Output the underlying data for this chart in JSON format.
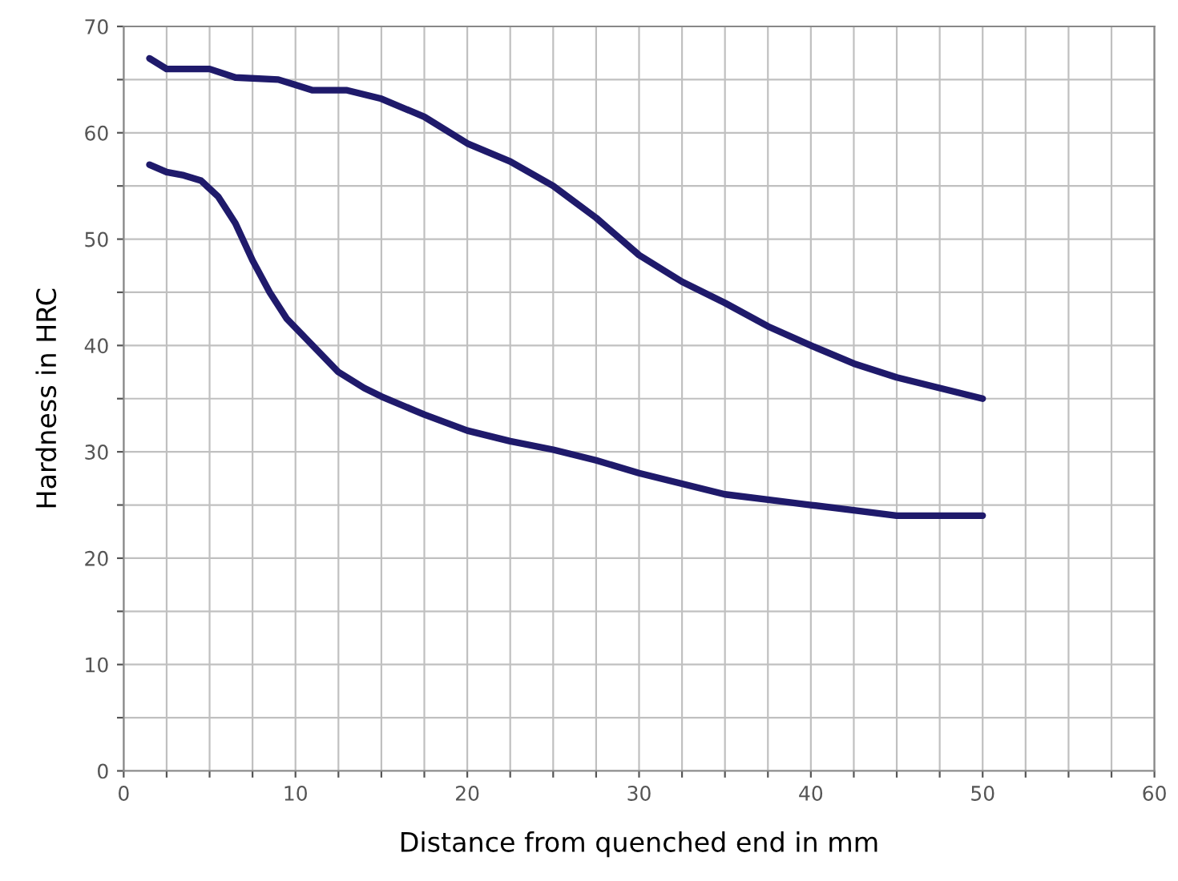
{
  "chart_data": {
    "type": "line",
    "xlabel": "Distance from quenched end in mm",
    "ylabel": "Hardness in HRC",
    "xlim": [
      0,
      60
    ],
    "ylim": [
      0,
      70
    ],
    "xticks": [
      0,
      {
        "value": 2.5,
        "label": null
      },
      {
        "value": 5,
        "label": null
      },
      {
        "value": 7.5,
        "label": null
      },
      10,
      {
        "value": 12.5,
        "label": null
      },
      {
        "value": 15,
        "label": null
      },
      {
        "value": 17.5,
        "label": null
      },
      20,
      {
        "value": 22.5,
        "label": null
      },
      {
        "value": 25,
        "label": null
      },
      {
        "value": 27.5,
        "label": null
      },
      30,
      {
        "value": 32.5,
        "label": null
      },
      {
        "value": 35,
        "label": null
      },
      {
        "value": 37.5,
        "label": null
      },
      40,
      {
        "value": 42.5,
        "label": null
      },
      {
        "value": 45,
        "label": null
      },
      {
        "value": 47.5,
        "label": null
      },
      50,
      {
        "value": 52.5,
        "label": null
      },
      {
        "value": 55,
        "label": null
      },
      {
        "value": 57.5,
        "label": null
      },
      60
    ],
    "yticks": [
      0,
      {
        "value": 5,
        "label": null
      },
      10,
      {
        "value": 15,
        "label": null
      },
      20,
      {
        "value": 25,
        "label": null
      },
      30,
      {
        "value": 35,
        "label": null
      },
      40,
      {
        "value": 45,
        "label": null
      },
      50,
      {
        "value": 55,
        "label": null
      },
      60,
      {
        "value": 65,
        "label": null
      },
      70
    ],
    "grid": true,
    "marker": "none",
    "line_style": "solid",
    "series": [
      {
        "color": "#1f1a6b",
        "x": [
          1.5,
          2.5,
          5,
          6.5,
          9,
          10,
          11,
          13,
          15,
          17.5,
          20,
          22.5,
          25,
          27.5,
          30,
          32.5,
          35,
          37.5,
          40,
          42.5,
          45,
          47.5,
          50
        ],
        "values": [
          67,
          66,
          66,
          65.2,
          65,
          64.5,
          64,
          64,
          63.2,
          61.5,
          59,
          57.3,
          55,
          52,
          48.5,
          46,
          44,
          41.8,
          40,
          38.3,
          37,
          36,
          35
        ]
      },
      {
        "color": "#1f1a6b",
        "x": [
          1.5,
          2.5,
          3.5,
          4.5,
          5.5,
          6.5,
          7.5,
          8.5,
          9.5,
          11,
          12.5,
          14,
          15,
          17.5,
          20,
          22.5,
          25,
          27.5,
          30,
          32.5,
          35,
          37.5,
          40,
          42.5,
          45,
          47.5,
          50
        ],
        "values": [
          57,
          56.3,
          56,
          55.5,
          54,
          51.5,
          48,
          45,
          42.5,
          40,
          37.5,
          36,
          35.2,
          33.5,
          32,
          31,
          30.2,
          29.2,
          28,
          27,
          26,
          25.5,
          25,
          24.5,
          24,
          24,
          24
        ]
      }
    ]
  }
}
